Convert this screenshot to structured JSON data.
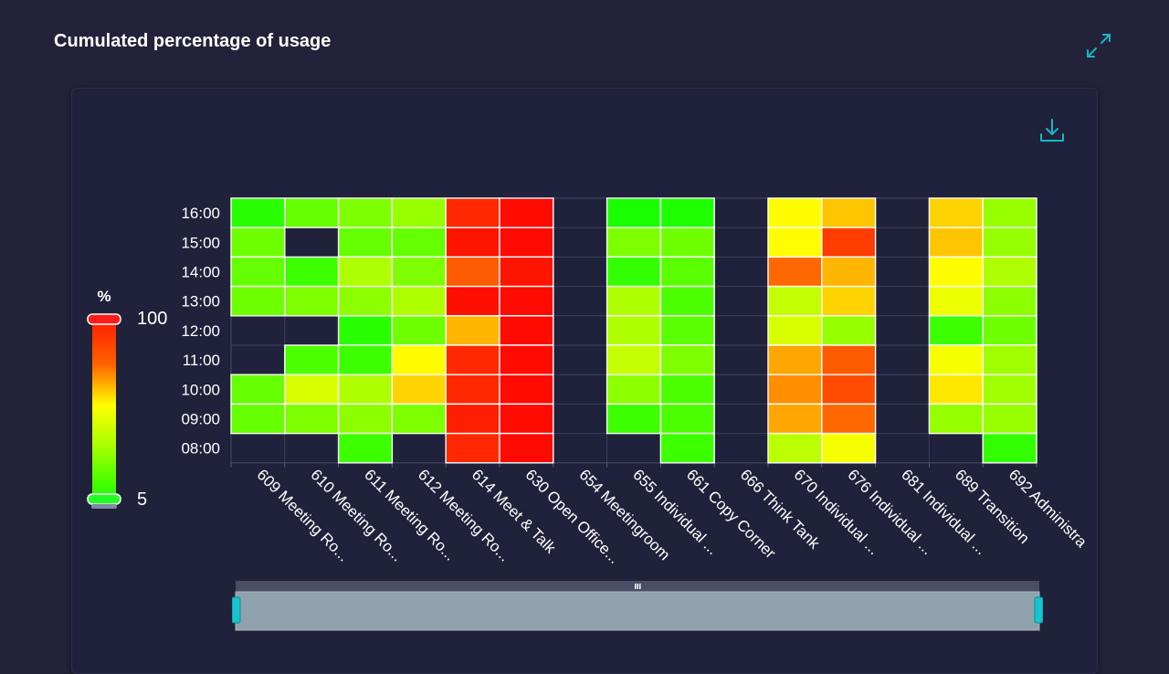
{
  "header": {
    "title": "Cumulated percentage of usage",
    "expand_icon": "expand-icon"
  },
  "toolbar": {
    "download_icon": "download-icon"
  },
  "legend": {
    "unit": "%",
    "max_label": "100",
    "min_label": "5",
    "colors": [
      "#ff0000",
      "#ff6a00",
      "#ffd000",
      "#ffff00",
      "#b8ff00",
      "#19ff00"
    ]
  },
  "chart_data": {
    "type": "heatmap",
    "title": "Cumulated percentage of usage",
    "scale": {
      "min": 5,
      "max": 100,
      "unit": "%"
    },
    "x_categories": [
      "609 Meeting Ro...",
      "610 Meeting Ro...",
      "611 Meeting Ro...",
      "612 Meeting Ro...",
      "614 Meet & Talk",
      "630 Open Office...",
      "654 Meetingroom",
      "655 Individual ...",
      "661 Copy Corner",
      "666 Think Tank",
      "670 Individual ...",
      "676 Individual ...",
      "681 Individual ...",
      "689 Transition",
      "692 Administra"
    ],
    "y_categories": [
      "16:00",
      "15:00",
      "14:00",
      "13:00",
      "12:00",
      "11:00",
      "10:00",
      "09:00",
      "08:00"
    ],
    "values": [
      [
        8,
        20,
        25,
        30,
        92,
        98,
        null,
        5,
        6,
        null,
        55,
        68,
        null,
        65,
        30
      ],
      [
        22,
        null,
        20,
        20,
        96,
        98,
        null,
        25,
        22,
        null,
        55,
        88,
        null,
        68,
        30
      ],
      [
        20,
        12,
        35,
        25,
        82,
        96,
        null,
        10,
        18,
        null,
        80,
        70,
        null,
        55,
        35
      ],
      [
        22,
        25,
        28,
        35,
        97,
        98,
        null,
        35,
        15,
        null,
        40,
        65,
        null,
        50,
        28
      ],
      [
        null,
        null,
        8,
        22,
        70,
        98,
        null,
        35,
        18,
        null,
        45,
        30,
        null,
        12,
        22
      ],
      [
        null,
        15,
        12,
        55,
        92,
        98,
        null,
        40,
        25,
        null,
        72,
        82,
        null,
        52,
        32
      ],
      [
        20,
        45,
        35,
        65,
        92,
        98,
        null,
        28,
        15,
        null,
        75,
        85,
        null,
        60,
        32
      ],
      [
        20,
        25,
        28,
        25,
        94,
        98,
        null,
        12,
        15,
        null,
        72,
        80,
        null,
        30,
        30
      ],
      [
        null,
        null,
        12,
        null,
        92,
        98,
        null,
        null,
        12,
        null,
        38,
        52,
        null,
        null,
        10
      ]
    ]
  },
  "zoom_slider": {
    "start": 0,
    "end": 1,
    "grip_icon": "grip-icon"
  }
}
